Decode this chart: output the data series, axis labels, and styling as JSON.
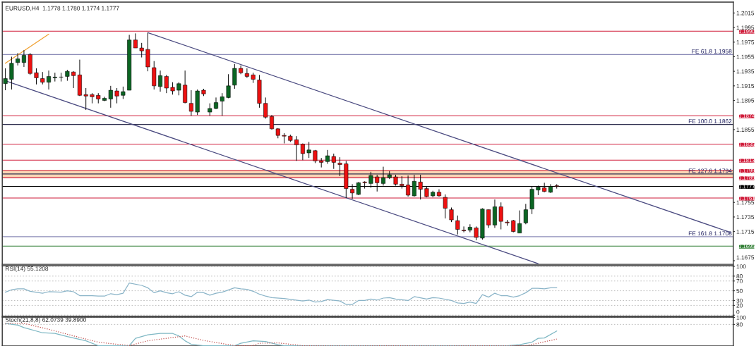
{
  "chart_data": [
    {
      "type": "candlestick",
      "title": "EURUSD,H4  1.1778 1.1780 1.1774 1.1777",
      "categories": [
        null,
        null,
        null,
        null,
        null,
        null,
        null,
        null,
        null,
        null,
        null,
        null,
        null,
        null,
        null,
        null,
        null,
        null,
        null,
        null,
        null,
        null,
        null,
        null,
        null,
        null,
        null,
        null,
        null,
        null,
        null,
        null,
        null,
        null,
        null,
        null,
        null,
        null,
        null,
        null,
        null,
        null,
        null,
        null,
        null,
        null,
        null,
        null,
        null,
        null,
        null,
        null,
        null,
        null,
        null,
        null,
        null,
        null,
        null,
        null,
        null,
        null,
        null,
        null,
        null,
        null,
        null,
        null,
        null,
        null,
        null,
        null,
        null,
        null,
        null,
        null,
        null,
        null,
        null,
        null,
        null,
        null,
        null,
        null,
        null,
        null,
        null,
        null,
        null,
        null,
        null,
        null,
        null,
        null,
        null,
        null,
        null,
        null,
        null,
        null,
        null,
        null,
        null,
        null,
        null,
        null,
        null,
        null,
        null,
        null,
        null,
        null,
        null,
        null,
        null,
        null,
        null,
        null
      ],
      "ohlc": [
        [
          1.1918,
          1.1939,
          1.1909,
          1.1925
        ],
        [
          1.1924,
          1.1955,
          1.191,
          1.1946
        ],
        [
          1.1947,
          1.196,
          1.1943,
          1.1952
        ],
        [
          1.1947,
          1.1964,
          1.1941,
          1.1957
        ],
        [
          1.1958,
          1.196,
          1.193,
          1.1932
        ],
        [
          1.1933,
          1.1939,
          1.1917,
          1.1926
        ],
        [
          1.1925,
          1.1934,
          1.1917,
          1.192
        ],
        [
          1.192,
          1.1936,
          1.191,
          1.1928
        ],
        [
          1.1926,
          1.1933,
          1.1921,
          1.1927
        ],
        [
          1.1927,
          1.1933,
          1.1921,
          1.1927
        ],
        [
          1.1928,
          1.1937,
          1.1922,
          1.1935
        ],
        [
          1.1934,
          1.1935,
          1.1912,
          1.1929
        ],
        [
          1.193,
          1.1951,
          1.1901,
          1.1902
        ],
        [
          1.1903,
          1.1912,
          1.1882,
          1.1901
        ],
        [
          1.1903,
          1.1905,
          1.1891,
          1.19
        ],
        [
          1.1902,
          1.1905,
          1.1891,
          1.1897
        ],
        [
          1.1895,
          1.19,
          1.1894,
          1.1898
        ],
        [
          1.1897,
          1.1915,
          1.1885,
          1.1909
        ],
        [
          1.1908,
          1.1912,
          1.1891,
          1.1901
        ],
        [
          1.1902,
          1.1914,
          1.1897,
          1.1907
        ],
        [
          1.1909,
          1.1985,
          1.1909,
          1.1978
        ],
        [
          1.1978,
          1.1987,
          1.1967,
          1.1967
        ],
        [
          1.1967,
          1.1974,
          1.1954,
          1.1963
        ],
        [
          1.1965,
          1.1988,
          1.1935,
          1.1941
        ],
        [
          1.194,
          1.1949,
          1.191,
          1.1915
        ],
        [
          1.1914,
          1.1936,
          1.1907,
          1.1929
        ],
        [
          1.1928,
          1.193,
          1.1905,
          1.1912
        ],
        [
          1.1913,
          1.192,
          1.1903,
          1.1908
        ],
        [
          1.1909,
          1.192,
          1.1902,
          1.1918
        ],
        [
          1.1916,
          1.1936,
          1.1891,
          1.1892
        ],
        [
          1.1891,
          1.1909,
          1.1874,
          1.188
        ],
        [
          1.1879,
          1.191,
          1.1875,
          1.1908
        ],
        [
          1.1909,
          1.1911,
          1.1901,
          1.1904
        ],
        [
          1.1879,
          1.1891,
          1.1874,
          1.1884
        ],
        [
          1.1884,
          1.1899,
          1.1883,
          1.1892
        ],
        [
          1.1894,
          1.1905,
          1.1874,
          1.19
        ],
        [
          1.1899,
          1.1931,
          1.1898,
          1.1915
        ],
        [
          1.1916,
          1.1945,
          1.1911,
          1.1939
        ],
        [
          1.1939,
          1.1943,
          1.1931,
          1.1933
        ],
        [
          1.1932,
          1.1939,
          1.1926,
          1.1928
        ],
        [
          1.193,
          1.1933,
          1.1919,
          1.1924
        ],
        [
          1.1923,
          1.193,
          1.1885,
          1.1891
        ],
        [
          1.1891,
          1.1899,
          1.187,
          1.1872
        ],
        [
          1.1873,
          1.1875,
          1.1855,
          1.1856
        ],
        [
          1.1856,
          1.1857,
          1.1843,
          1.1847
        ],
        [
          1.1847,
          1.185,
          1.1836,
          1.1846
        ],
        [
          1.1846,
          1.1848,
          1.1838,
          1.184
        ],
        [
          1.1841,
          1.1846,
          1.1812,
          1.1834
        ],
        [
          1.1835,
          1.1836,
          1.1813,
          1.1822
        ],
        [
          1.1823,
          1.1838,
          1.1816,
          1.1827
        ],
        [
          1.1826,
          1.1827,
          1.1809,
          1.1812
        ],
        [
          1.1812,
          1.1816,
          1.1803,
          1.181
        ],
        [
          1.1811,
          1.1827,
          1.1808,
          1.1819
        ],
        [
          1.1818,
          1.1822,
          1.1801,
          1.181
        ],
        [
          1.1809,
          1.1817,
          1.1791,
          1.1807
        ],
        [
          1.1808,
          1.1812,
          1.1761,
          1.1774
        ],
        [
          1.1773,
          1.178,
          1.176,
          1.1768
        ],
        [
          1.1766,
          1.1783,
          1.1765,
          1.1782
        ],
        [
          1.1783,
          1.1784,
          1.1774,
          1.1782
        ],
        [
          1.1781,
          1.1797,
          1.1775,
          1.1792
        ],
        [
          1.179,
          1.1793,
          1.177,
          1.1782
        ],
        [
          1.1781,
          1.1804,
          1.1778,
          1.1789
        ],
        [
          1.1789,
          1.1798,
          1.1787,
          1.1793
        ],
        [
          1.179,
          1.1793,
          1.1778,
          1.178
        ],
        [
          1.178,
          1.1791,
          1.1774,
          1.1778
        ],
        [
          1.1779,
          1.1792,
          1.1763,
          1.1765
        ],
        [
          1.1764,
          1.1793,
          1.1763,
          1.1784
        ],
        [
          1.1783,
          1.1793,
          1.1759,
          1.1773
        ],
        [
          1.1774,
          1.1777,
          1.1762,
          1.1763
        ],
        [
          1.1764,
          1.1771,
          1.1762,
          1.1769
        ],
        [
          1.1769,
          1.1773,
          1.1763,
          1.1764
        ],
        [
          1.1762,
          1.1766,
          1.1733,
          1.1747
        ],
        [
          1.1745,
          1.1748,
          1.1728,
          1.1731
        ],
        [
          1.173,
          1.1737,
          1.1711,
          1.1718
        ],
        [
          1.1717,
          1.1722,
          1.1714,
          1.1716
        ],
        [
          1.1717,
          1.1725,
          1.1714,
          1.1721
        ],
        [
          1.172,
          1.1722,
          1.1703,
          1.1707
        ],
        [
          1.1706,
          1.1747,
          1.1704,
          1.1746
        ],
        [
          1.1745,
          1.1745,
          1.172,
          1.1724
        ],
        [
          1.1724,
          1.1759,
          1.172,
          1.1749
        ],
        [
          1.1749,
          1.1755,
          1.1718,
          1.1729
        ],
        [
          1.1728,
          1.1731,
          1.1723,
          1.1727
        ],
        [
          1.173,
          1.1731,
          1.1714,
          1.1715
        ],
        [
          1.1713,
          1.1744,
          1.1713,
          1.1726
        ],
        [
          1.1727,
          1.1753,
          1.1725,
          1.1745
        ],
        [
          1.1746,
          1.1777,
          1.1739,
          1.1773
        ],
        [
          1.1772,
          1.1778,
          1.1765,
          1.1776
        ],
        [
          1.1775,
          1.1782,
          1.1769,
          1.177
        ],
        [
          1.1769,
          1.178,
          1.1768,
          1.1777
        ],
        [
          1.1778,
          1.178,
          1.1774,
          1.1777
        ],
        null,
        null,
        null,
        null,
        null,
        null,
        null,
        null,
        null,
        null,
        null,
        null,
        null,
        null,
        null,
        null,
        null,
        null,
        null,
        null,
        null,
        null,
        null,
        null,
        null,
        null,
        null,
        null
      ],
      "colors": [
        "#0b6623",
        "#0b6623",
        "#0b6623",
        "#0b6623",
        "#ee1111",
        "#ee1111",
        "#ee1111",
        "#0b6623",
        "#0b6623",
        "#000000",
        "#0b6623",
        "#ee1111",
        "#ee1111",
        "#ee1111",
        "#ee1111",
        "#ee1111",
        "#0b6623",
        "#0b6623",
        "#ee1111",
        "#0b6623",
        "#0b6623",
        "#ee1111",
        "#ee1111",
        "#ee1111",
        "#ee1111",
        "#0b6623",
        "#ee1111",
        "#ee1111",
        "#0b6623",
        "#ee1111",
        "#ee1111",
        "#0b6623",
        "#ee1111",
        "#0b6623",
        "#0b6623",
        "#0b6623",
        "#0b6623",
        "#0b6623",
        "#ee1111",
        "#ee1111",
        "#ee1111",
        "#ee1111",
        "#ee1111",
        "#ee1111",
        "#ee1111",
        "#ee1111",
        "#ee1111",
        "#ee1111",
        "#ee1111",
        "#0b6623",
        "#ee1111",
        "#ee1111",
        "#0b6623",
        "#ee1111",
        "#ee1111",
        "#ee1111",
        "#ee1111",
        "#0b6623",
        "#ee1111",
        "#0b6623",
        "#ee1111",
        "#0b6623",
        "#0b6623",
        "#ee1111",
        "#ee1111",
        "#ee1111",
        "#0b6623",
        "#ee1111",
        "#ee1111",
        "#0b6623",
        "#ee1111",
        "#ee1111",
        "#ee1111",
        "#ee1111",
        "#ee1111",
        "#0b6623",
        "#ee1111",
        "#0b6623",
        "#ee1111",
        "#0b6623",
        "#ee1111",
        "#ee1111",
        "#ee1111",
        "#0b6623",
        "#0b6623",
        "#0b6623",
        "#0b6623",
        "#ee1111",
        "#0b6623",
        "#ee1111",
        null,
        null,
        null,
        null,
        null,
        null,
        null,
        null,
        null,
        null,
        null,
        null,
        null,
        null,
        null,
        null,
        null,
        null,
        null,
        null,
        null,
        null,
        null,
        null,
        null,
        null,
        null,
        null
      ],
      "series": [
        {
          "type": "line",
          "values": [
            null,
            null,
            null,
            null,
            null,
            null,
            null,
            null,
            null,
            null,
            null,
            null,
            null,
            null,
            null,
            null,
            null,
            null,
            null,
            null,
            null,
            null,
            null,
            1.1988,
            null,
            null,
            null,
            null,
            null,
            null,
            null,
            null,
            null,
            null,
            null,
            null,
            null,
            null,
            null,
            null,
            null,
            null,
            null,
            null,
            null,
            null,
            null,
            null,
            null,
            null,
            null,
            null,
            null,
            null,
            null,
            null,
            null,
            null,
            null,
            null,
            null,
            null,
            null,
            null,
            null,
            null,
            null,
            null,
            null,
            null,
            null,
            null,
            null,
            null,
            null,
            null,
            null,
            null,
            null,
            null,
            null,
            null,
            null,
            null,
            null,
            null,
            null,
            null,
            null,
            null,
            null,
            null,
            null,
            null,
            null,
            null,
            null,
            null,
            null,
            null,
            null,
            null,
            null,
            null,
            null,
            null,
            null,
            null,
            null,
            null,
            null,
            null,
            null,
            null,
            null,
            null,
            null,
            1.1714
          ],
          "color": "#4a4a80"
        },
        {
          "type": "line",
          "values": [
            1.1922,
            null,
            null,
            null,
            null,
            null,
            null,
            null,
            null,
            null,
            null,
            null,
            null,
            null,
            null,
            null,
            null,
            null,
            null,
            null,
            null,
            null,
            null,
            null,
            null,
            null,
            null,
            null,
            null,
            null,
            null,
            null,
            null,
            null,
            null,
            null,
            null,
            null,
            null,
            null,
            null,
            null,
            null,
            null,
            null,
            null,
            null,
            null,
            null,
            null,
            null,
            null,
            null,
            null,
            null,
            null,
            null,
            null,
            null,
            null,
            null,
            null,
            null,
            null,
            null,
            null,
            null,
            null,
            null,
            null,
            null,
            null,
            null,
            null,
            null,
            null,
            null,
            null,
            null,
            null,
            null,
            null,
            null,
            null,
            null,
            null,
            1.1671,
            null,
            null,
            null,
            null,
            null,
            null,
            null,
            null,
            null,
            null,
            null,
            null,
            null,
            null,
            null,
            null,
            null,
            null,
            null,
            null,
            null,
            null,
            null,
            null,
            null,
            null,
            null,
            null,
            null,
            null,
            null
          ],
          "color": "#4a4a80"
        },
        {
          "type": "line",
          "values": [
            1.1946,
            null,
            null,
            null,
            null,
            null,
            null,
            1.1986,
            null,
            null,
            null,
            null,
            null,
            null,
            null,
            null,
            null,
            null,
            null,
            null,
            null,
            null,
            null,
            null,
            null,
            null,
            null,
            null,
            null,
            null,
            null,
            null,
            null,
            null,
            null,
            null,
            null,
            null,
            null,
            null,
            null,
            null,
            null,
            null,
            null,
            null,
            null,
            null,
            null,
            null,
            null,
            null,
            null,
            null,
            null,
            null,
            null,
            null,
            null,
            null,
            null,
            null,
            null,
            null,
            null,
            null,
            null,
            null,
            null,
            null,
            null,
            null,
            null,
            null,
            null,
            null,
            null,
            null,
            null,
            null,
            null,
            null,
            null,
            null,
            null,
            null,
            null,
            null,
            null,
            null,
            null,
            null,
            null,
            null,
            null,
            null,
            null,
            null,
            null,
            null,
            null,
            null,
            null,
            null,
            null,
            null,
            null,
            null,
            null,
            null,
            null,
            null,
            null,
            null,
            null,
            null,
            null,
            null
          ],
          "color": "#f0a030"
        }
      ],
      "ylim": [
        1.167,
        1.203
      ],
      "yticks": [
        1.1675,
        1.1715,
        1.1735,
        1.1755,
        1.1855,
        1.1895,
        1.1915,
        1.1935,
        1.1955,
        1.1975,
        1.1995,
        1.2015
      ],
      "tick_labels": "y",
      "bands": [
        {
          "axis": "y",
          "from": 1.1789,
          "to": 1.1799,
          "color": "#fcd5b4"
        }
      ],
      "ref_lines": [
        {
          "axis": "y",
          "value": 1.199,
          "label": "1.1990",
          "color": "#d01c3a"
        },
        {
          "axis": "y",
          "value": 1.1958,
          "label": "FE 61.8 1.1958",
          "color": "#8c8cb8"
        },
        {
          "axis": "y",
          "value": 1.1874,
          "label": "1.1874",
          "color": "#d01c3a"
        },
        {
          "axis": "y",
          "value": 1.1862,
          "label": "FE 100.0 1.1862",
          "color": "#303050"
        },
        {
          "axis": "y",
          "value": 1.1835,
          "label": "1.1835",
          "color": "#d01c3a"
        },
        {
          "axis": "y",
          "value": 1.1813,
          "label": "1.1813",
          "color": "#d01c3a"
        },
        {
          "axis": "y",
          "value": 1.1799,
          "label": "1.1799",
          "color": "#d01c3a"
        },
        {
          "axis": "y",
          "value": 1.1794,
          "label": "FE 127.6 1.1794",
          "color": "#303050"
        },
        {
          "axis": "y",
          "value": 1.1789,
          "label": "1.1789",
          "color": "#d01c3a"
        },
        {
          "axis": "y",
          "value": 1.1777,
          "label": "1.1777",
          "color": "#000000"
        },
        {
          "axis": "y",
          "value": 1.1761,
          "label": "1.1761",
          "color": "#d01c3a"
        },
        {
          "axis": "y",
          "value": 1.1708,
          "label": "FE 161.8 1.1708",
          "color": "#8c8cb8"
        },
        {
          "axis": "y",
          "value": 1.1695,
          "label": "1.1695",
          "color": "#2e7d32"
        }
      ]
    },
    {
      "type": "line",
      "title": "RSI(14) 55.1208",
      "categories": [
        null,
        null,
        null,
        null,
        null,
        null,
        null,
        null,
        null,
        null,
        null,
        null,
        null,
        null,
        null,
        null,
        null,
        null,
        null,
        null,
        null,
        null,
        null,
        null,
        null,
        null,
        null,
        null,
        null,
        null,
        null,
        null,
        null,
        null,
        null,
        null,
        null,
        null,
        null,
        null,
        null,
        null,
        null,
        null,
        null,
        null,
        null,
        null,
        null,
        null,
        null,
        null,
        null,
        null,
        null,
        null,
        null,
        null,
        null,
        null,
        null,
        null,
        null,
        null,
        null,
        null,
        null,
        null,
        null,
        null,
        null,
        null,
        null,
        null,
        null,
        null,
        null,
        null,
        null,
        null,
        null,
        null,
        null,
        null,
        null,
        null,
        null,
        null,
        null,
        null,
        null,
        null,
        null,
        null,
        null,
        null,
        null,
        null,
        null,
        null,
        null,
        null,
        null,
        null,
        null,
        null,
        null,
        null,
        null,
        null,
        null,
        null,
        null,
        null,
        null,
        null,
        null,
        null
      ],
      "series": [
        {
          "values": [
            47,
            52,
            54,
            54,
            49,
            null,
            45,
            48,
            null,
            47,
            50,
            48,
            40,
            null,
            40,
            39,
            39,
            44,
            42,
            45,
            66,
            null,
            61,
            56,
            46,
            50,
            46,
            44,
            48,
            41,
            38,
            47,
            46,
            41,
            45,
            47,
            null,
            56,
            54,
            53,
            49,
            43,
            39,
            36,
            null,
            34,
            null,
            null,
            29,
            31,
            27,
            28,
            32,
            null,
            29,
            22,
            22,
            30,
            30,
            33,
            31,
            35,
            36,
            33,
            null,
            30,
            38,
            null,
            33,
            36,
            35,
            null,
            30,
            25,
            24,
            27,
            24,
            42,
            37,
            45,
            40,
            40,
            37,
            40,
            46,
            55,
            55,
            54,
            56,
            56,
            null,
            null,
            null,
            null,
            null,
            null,
            null,
            null,
            null,
            null,
            null,
            null,
            null,
            null,
            null,
            null,
            null,
            null,
            null,
            null,
            null,
            null,
            null,
            null,
            null,
            null,
            null,
            null
          ],
          "color": "#8ab4c8"
        }
      ],
      "ylim": [
        -2,
        101.5
      ],
      "yticks": [
        0,
        20,
        30,
        50,
        70,
        80,
        100
      ],
      "grid": "y",
      "tick_labels": "y"
    },
    {
      "type": "line",
      "title": "Stoch(21,8,8) 62.0739 39.8900",
      "categories": [
        null,
        null,
        null,
        null,
        null,
        null,
        null,
        null,
        null,
        null,
        null,
        null,
        null,
        null,
        null,
        null,
        null,
        null,
        null,
        null,
        null,
        null,
        null,
        null,
        null,
        null,
        null,
        null,
        null,
        null,
        null,
        null,
        null,
        null,
        null,
        null,
        null,
        null,
        null,
        null,
        null,
        null,
        null,
        null,
        null,
        null,
        null,
        null,
        null,
        null,
        null,
        null,
        null,
        null,
        null,
        null,
        null,
        null,
        null,
        null,
        null,
        null,
        null,
        null,
        null,
        null,
        null,
        null,
        null,
        null,
        null,
        null,
        null,
        null,
        null,
        null,
        null,
        null,
        null,
        null,
        null,
        null,
        null,
        null,
        null,
        null,
        null,
        null,
        null,
        null,
        null,
        null,
        null,
        null,
        null,
        null,
        null,
        null,
        null,
        null,
        null,
        null,
        null,
        null,
        null,
        null,
        null,
        null,
        null,
        null,
        null,
        null,
        null,
        null,
        null,
        null,
        null,
        null
      ],
      "series": [
        {
          "values": [
            83,
            null,
            78,
            71,
            null,
            null,
            56,
            null,
            54,
            null,
            45,
            null,
            null,
            33,
            null,
            19,
            null,
            null,
            null,
            null,
            19,
            40,
            null,
            50,
            null,
            54,
            null,
            54,
            47,
            33,
            23,
            null,
            19,
            null,
            null,
            null,
            null,
            19,
            26,
            null,
            33,
            null,
            31,
            null,
            22,
            19,
            null,
            null,
            null,
            null,
            null,
            null,
            null,
            null,
            null,
            null,
            null,
            null,
            null,
            null,
            null,
            null,
            null,
            null,
            null,
            null,
            null,
            null,
            null,
            null,
            null,
            null,
            null,
            null,
            null,
            null,
            null,
            null,
            null,
            null,
            null,
            19,
            null,
            22,
            null,
            29,
            40,
            41,
            null,
            61,
            null,
            null,
            null,
            null,
            null,
            null,
            null,
            null,
            null,
            null,
            null,
            null,
            null,
            null,
            null,
            null,
            null,
            null,
            null,
            null,
            null,
            null,
            null,
            null,
            null,
            null,
            null,
            null
          ],
          "color": "#7fb8c4"
        },
        {
          "values": [
            83,
            null,
            null,
            83,
            null,
            null,
            null,
            66,
            null,
            null,
            null,
            47,
            null,
            null,
            null,
            29,
            null,
            null,
            null,
            null,
            19,
            null,
            null,
            33,
            null,
            null,
            null,
            null,
            null,
            47,
            null,
            null,
            34,
            null,
            null,
            null,
            null,
            19,
            null,
            null,
            19,
            26,
            null,
            null,
            27,
            null,
            null,
            null,
            19,
            null,
            null,
            null,
            null,
            null,
            null,
            null,
            null,
            null,
            null,
            null,
            null,
            null,
            null,
            null,
            null,
            null,
            null,
            null,
            null,
            null,
            null,
            null,
            null,
            null,
            null,
            null,
            null,
            null,
            null,
            null,
            null,
            null,
            null,
            null,
            19,
            null,
            26,
            null,
            null,
            38,
            null,
            null,
            null,
            null,
            null,
            null,
            null,
            null,
            null,
            null,
            null,
            null,
            null,
            null,
            null,
            null,
            null,
            null,
            null,
            null,
            null,
            null,
            null,
            null,
            null,
            null,
            null,
            null
          ],
          "color": "#c0504d",
          "line_style": "dotted"
        }
      ],
      "ylim": [
        18,
        101
      ],
      "yticks": [
        80,
        100
      ],
      "grid": "y",
      "tick_labels": "y"
    }
  ]
}
